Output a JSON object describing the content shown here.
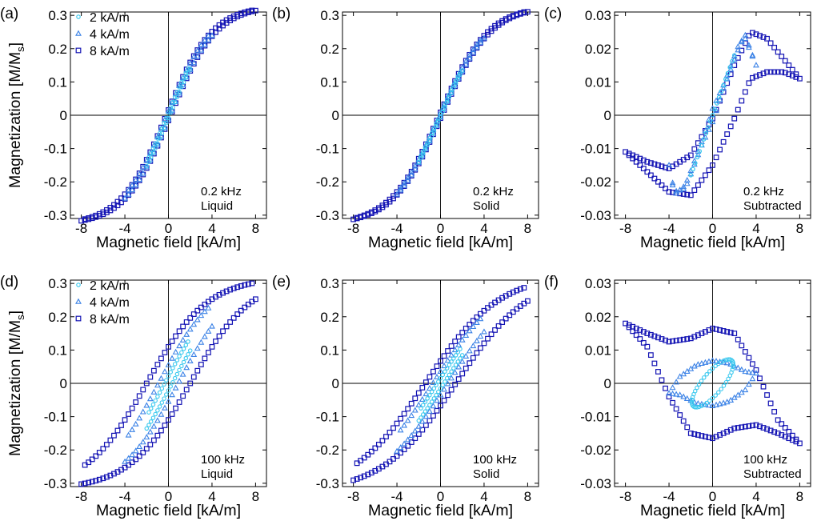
{
  "figure": {
    "legend_items": [
      {
        "label": "2 kA/m",
        "marker": "circle",
        "color": "#38c8ee"
      },
      {
        "label": "4 kA/m",
        "marker": "triangle",
        "color": "#3b82e6"
      },
      {
        "label": "8 kA/m",
        "marker": "square",
        "color": "#1414b4"
      }
    ],
    "colors": {
      "2 kA/m": "#38c8ee",
      "4 kA/m": "#3b82e6",
      "8 kA/m": "#1414b4",
      "axes": "#000000"
    }
  },
  "chart_data": [
    {
      "panel": "(a)",
      "type": "scatter",
      "condition": [
        "0.2 kHz",
        "Liquid"
      ],
      "xlabel": "Magnetic field [kA/m]",
      "ylabel": "Magnetization [M/M",
      "ylabel_sub": "s",
      "ylabel_end": "]",
      "xlim": [
        -9,
        9
      ],
      "ylim": [
        -0.31,
        0.31
      ],
      "xticks": [
        -8,
        -4,
        0,
        4,
        8
      ],
      "xticklabels": [
        "-8",
        "-4",
        "0",
        "4",
        "8"
      ],
      "yticks": [
        0.3,
        0.2,
        0.1,
        0,
        -0.1,
        -0.2,
        -0.3
      ],
      "yticklabels": [
        "0.3",
        "0.2",
        "0.1",
        "0",
        "-0.1",
        "-0.2",
        "-0.3"
      ],
      "legend": true,
      "series": [
        {
          "name": "2 kA/m",
          "amplitude": 2,
          "loop": "tanh",
          "sat": 0.33,
          "scale": 4.2,
          "offset": 0.1
        },
        {
          "name": "4 kA/m",
          "amplitude": 4,
          "loop": "tanh",
          "sat": 0.33,
          "scale": 4.2,
          "offset": 0.15
        },
        {
          "name": "8 kA/m",
          "amplitude": 8,
          "loop": "tanh",
          "sat": 0.33,
          "scale": 4.2,
          "offset": 0.2
        }
      ]
    },
    {
      "panel": "(b)",
      "type": "scatter",
      "condition": [
        "0.2 kHz",
        "Solid"
      ],
      "xlabel": "Magnetic field [kA/m]",
      "xlim": [
        -9,
        9
      ],
      "ylim": [
        -0.31,
        0.31
      ],
      "xticks": [
        -8,
        -4,
        0,
        4,
        8
      ],
      "xticklabels": [
        "-8",
        "-4",
        "0",
        "4",
        "8"
      ],
      "yticks": [
        0.3,
        0.2,
        0.1,
        0,
        -0.1,
        -0.2,
        -0.3
      ],
      "yticklabels": [
        "0.3",
        "0.2",
        "0.1",
        "0",
        "-0.1",
        "-0.2",
        "-0.3"
      ],
      "legend": false,
      "series": [
        {
          "name": "2 kA/m",
          "amplitude": 2,
          "loop": "tanh",
          "sat": 0.33,
          "scale": 4.5,
          "offset": 0.05
        },
        {
          "name": "4 kA/m",
          "amplitude": 4,
          "loop": "tanh",
          "sat": 0.33,
          "scale": 4.5,
          "offset": 0.08
        },
        {
          "name": "8 kA/m",
          "amplitude": 8,
          "loop": "tanh",
          "sat": 0.33,
          "scale": 4.5,
          "offset": 0.12
        }
      ]
    },
    {
      "panel": "(c)",
      "type": "scatter",
      "condition": [
        "0.2 kHz",
        "Subtracted"
      ],
      "xlabel": "Magnetic field [kA/m]",
      "xlim": [
        -9,
        9
      ],
      "ylim": [
        -0.031,
        0.031
      ],
      "xticks": [
        -8,
        -4,
        0,
        4,
        8
      ],
      "xticklabels": [
        "-8",
        "-4",
        "0",
        "4",
        "8"
      ],
      "yticks": [
        0.03,
        0.02,
        0.01,
        0,
        -0.01,
        -0.02,
        -0.03
      ],
      "yticklabels": [
        "0.03",
        "0.02",
        "0.01",
        "0",
        "-0.01",
        "-0.02",
        "-0.03"
      ],
      "legend": false,
      "series": [
        {
          "name": "2 kA/m",
          "amplitude": 2,
          "loop": "poly",
          "xs": [
            -2,
            -1,
            0,
            1,
            2
          ],
          "up": [
            -0.018,
            -0.009,
            0,
            0.009,
            0.018
          ],
          "down": [
            -0.018,
            -0.009,
            0,
            0.009,
            0.018
          ]
        },
        {
          "name": "4 kA/m",
          "amplitude": 4,
          "loop": "poly",
          "xs": [
            -4,
            -3.5,
            -2.5,
            -1,
            0,
            1,
            2.5,
            3,
            4
          ],
          "up": [
            -0.015,
            -0.023,
            -0.022,
            -0.009,
            -0.002,
            0.008,
            0.021,
            0.024,
            0.015
          ],
          "down": [
            -0.015,
            -0.024,
            -0.021,
            -0.008,
            0.002,
            0.009,
            0.022,
            0.023,
            0.015
          ]
        },
        {
          "name": "8 kA/m",
          "amplitude": 8,
          "loop": "poly",
          "xs": [
            -8,
            -6,
            -4,
            -2,
            0,
            2,
            3.5,
            5,
            6.5,
            8
          ],
          "up": [
            -0.011,
            -0.014,
            -0.016,
            -0.012,
            -0.001,
            0.015,
            0.025,
            0.023,
            0.017,
            0.011
          ],
          "down": [
            -0.011,
            -0.017,
            -0.023,
            -0.024,
            -0.015,
            -0.001,
            0.011,
            0.013,
            0.013,
            0.011
          ]
        }
      ]
    },
    {
      "panel": "(d)",
      "type": "scatter",
      "condition": [
        "100 kHz",
        "Liquid"
      ],
      "xlabel": "Magnetic field [kA/m]",
      "ylabel": "Magnetization [M/M",
      "ylabel_sub": "s",
      "ylabel_end": "]",
      "xlim": [
        -9,
        9
      ],
      "ylim": [
        -0.31,
        0.31
      ],
      "xticks": [
        -8,
        -4,
        0,
        4,
        8
      ],
      "xticklabels": [
        "-8",
        "-4",
        "0",
        "4",
        "8"
      ],
      "yticks": [
        0.3,
        0.2,
        0.1,
        0,
        -0.1,
        -0.2,
        -0.3
      ],
      "yticklabels": [
        "0.3",
        "0.2",
        "0.1",
        "0",
        "-0.1",
        "-0.2",
        "-0.3"
      ],
      "legend": true,
      "series": [
        {
          "name": "2 kA/m",
          "amplitude": 2,
          "loop": "tanh",
          "sat": 0.32,
          "scale": 5.2,
          "offset": 0.35
        },
        {
          "name": "4 kA/m",
          "amplitude": 4,
          "loop": "tanh",
          "sat": 0.32,
          "scale": 5.2,
          "offset": 0.9
        },
        {
          "name": "8 kA/m",
          "amplitude": 8,
          "loop": "tanh",
          "sat": 0.32,
          "scale": 5.6,
          "offset": 2.0
        }
      ]
    },
    {
      "panel": "(e)",
      "type": "scatter",
      "condition": [
        "100 kHz",
        "Solid"
      ],
      "xlabel": "Magnetic field [kA/m]",
      "xlim": [
        -9,
        9
      ],
      "ylim": [
        -0.31,
        0.31
      ],
      "xticks": [
        -8,
        -4,
        0,
        4,
        8
      ],
      "xticklabels": [
        "-8",
        "-4",
        "0",
        "4",
        "8"
      ],
      "yticks": [
        0.3,
        0.2,
        0.1,
        0,
        -0.1,
        -0.2,
        -0.3
      ],
      "yticklabels": [
        "0.3",
        "0.2",
        "0.1",
        "0",
        "-0.1",
        "-0.2",
        "-0.3"
      ],
      "legend": false,
      "series": [
        {
          "name": "2 kA/m",
          "amplitude": 2,
          "loop": "tanh",
          "sat": 0.33,
          "scale": 6.5,
          "offset": 0.3
        },
        {
          "name": "4 kA/m",
          "amplitude": 4,
          "loop": "tanh",
          "sat": 0.33,
          "scale": 6.5,
          "offset": 0.7
        },
        {
          "name": "8 kA/m",
          "amplitude": 8,
          "loop": "tanh",
          "sat": 0.33,
          "scale": 6.8,
          "offset": 1.4
        }
      ]
    },
    {
      "panel": "(f)",
      "type": "scatter",
      "condition": [
        "100 kHz",
        "Subtracted"
      ],
      "xlabel": "Magnetic field [kA/m]",
      "xlim": [
        -9,
        9
      ],
      "ylim": [
        -0.031,
        0.031
      ],
      "xticks": [
        -8,
        -4,
        0,
        4,
        8
      ],
      "xticklabels": [
        "-8",
        "-4",
        "0",
        "4",
        "8"
      ],
      "yticks": [
        0.03,
        0.02,
        0.01,
        0,
        -0.01,
        -0.02,
        -0.03
      ],
      "yticklabels": [
        "0.03",
        "0.02",
        "0.01",
        "0",
        "-0.01",
        "-0.02",
        "-0.03"
      ],
      "legend": false,
      "series": [
        {
          "name": "2 kA/m",
          "amplitude": 2,
          "loop": "ellipse",
          "cx": 0,
          "cy": 0,
          "rx": 1.9,
          "ry": 0.0072,
          "phase": 0.9
        },
        {
          "name": "4 kA/m",
          "amplitude": 4,
          "loop": "poly",
          "xs": [
            -4,
            -3,
            -1.5,
            0,
            1.5,
            3,
            4
          ],
          "up": [
            -0.003,
            0.002,
            0.0055,
            0.0068,
            0.006,
            0.0035,
            0.003
          ],
          "down": [
            -0.003,
            -0.0035,
            -0.006,
            -0.0068,
            -0.0055,
            -0.002,
            0.003
          ]
        },
        {
          "name": "8 kA/m",
          "amplitude": 8,
          "loop": "poly",
          "xs": [
            -8,
            -6,
            -4,
            -2,
            0,
            2,
            4,
            6,
            8
          ],
          "up": [
            0.018,
            0.015,
            0.0125,
            0.0135,
            0.0165,
            0.015,
            0.004,
            -0.011,
            -0.018
          ],
          "down": [
            0.018,
            0.011,
            -0.004,
            -0.015,
            -0.0165,
            -0.0135,
            -0.0125,
            -0.015,
            -0.018
          ]
        }
      ]
    }
  ]
}
